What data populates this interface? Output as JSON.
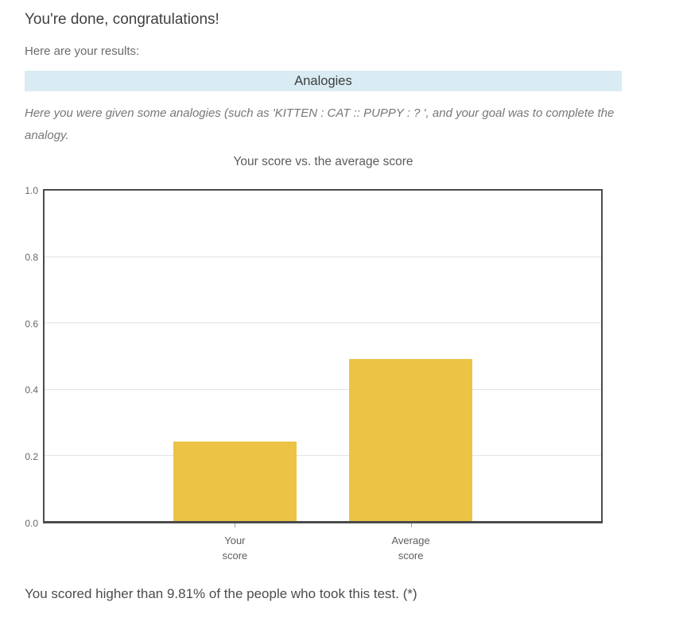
{
  "header": {
    "title": "You're done, congratulations!",
    "subtitle": "Here are your results:"
  },
  "section": {
    "title": "Analogies",
    "header_bg": "#d9ecf4",
    "description": "Here you were given some analogies (such as 'KITTEN : CAT :: PUPPY : ? ', and your goal was to complete the analogy."
  },
  "chart_data": {
    "type": "bar",
    "title": "Your score vs. the average score",
    "categories": [
      [
        "Your",
        "score"
      ],
      [
        "Average",
        "score"
      ]
    ],
    "values": [
      0.24,
      0.49
    ],
    "bar_color": "#ecc344",
    "ylim": [
      0.0,
      1.0
    ],
    "yticks": [
      0.0,
      0.2,
      0.4,
      0.6,
      0.8,
      1.0
    ],
    "grid": true,
    "xlabel": "",
    "ylabel": ""
  },
  "footer": {
    "note": "You scored higher than 9.81% of the people who took this test. (*)"
  }
}
